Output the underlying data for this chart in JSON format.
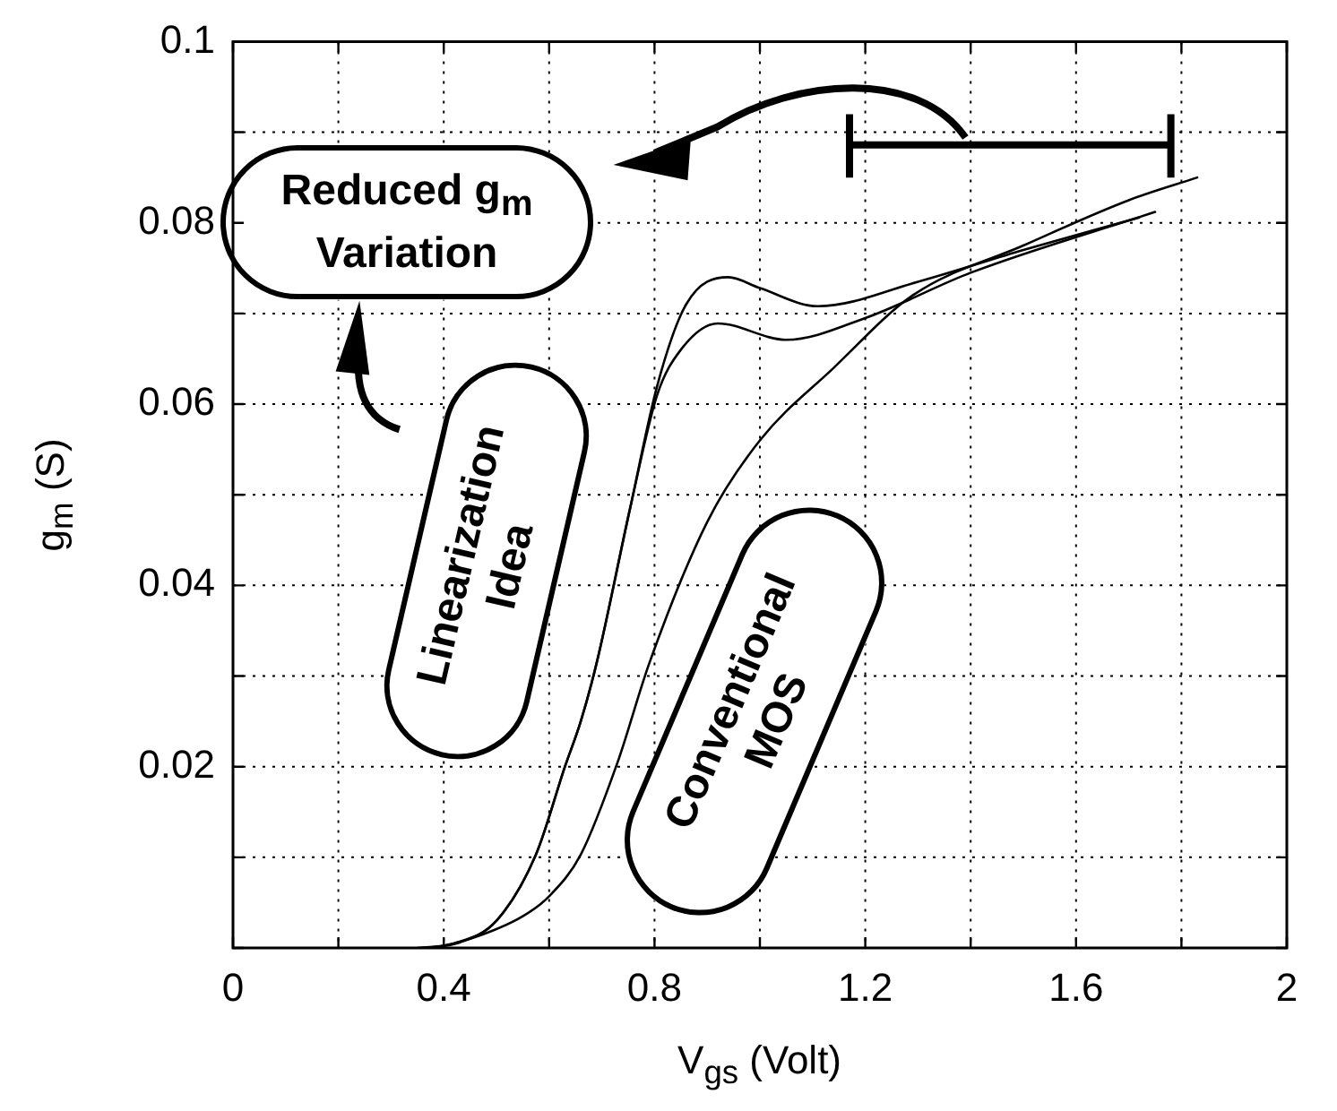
{
  "chart_data": {
    "type": "line",
    "xlabel": "V$_{gs}$ (Volt)",
    "ylabel": "g$_{m}$ (S)",
    "xlim": [
      0,
      2
    ],
    "ylim": [
      0,
      0.1
    ],
    "xticks": [
      0,
      {
        "value": 0.2,
        "label": null
      },
      0.4,
      {
        "value": 0.6,
        "label": null
      },
      0.8,
      {
        "value": 1.0,
        "label": null
      },
      1.2,
      {
        "value": 1.4,
        "label": null
      },
      1.6,
      {
        "value": 1.8,
        "label": null
      },
      2
    ],
    "yticks": [
      {
        "value": 0,
        "label": null
      },
      {
        "value": 0.01,
        "label": null
      },
      0.02,
      {
        "value": 0.03,
        "label": null
      },
      0.04,
      {
        "value": 0.05,
        "label": null
      },
      0.06,
      {
        "value": 0.07,
        "label": null
      },
      0.08,
      {
        "value": 0.09,
        "label": null
      },
      0.1
    ],
    "grid": true,
    "legend": false,
    "marker": "none",
    "line_style": "solid",
    "series": [
      {
        "color": "#000000",
        "x": [
          0.35,
          0.42,
          0.5,
          0.575,
          0.63,
          0.66,
          0.69,
          0.754,
          0.805,
          0.86,
          0.94,
          1.0,
          1.11,
          1.3,
          1.5,
          1.72
        ],
        "values": [
          0,
          0.0005,
          0.003,
          0.0103,
          0.02,
          0.025,
          0.0314,
          0.0486,
          0.062,
          0.071,
          0.074,
          0.0728,
          0.0708,
          0.0735,
          0.077,
          0.0806
        ]
      },
      {
        "color": "#000000",
        "x": [
          0.37,
          0.43,
          0.5,
          0.575,
          0.63,
          0.66,
          0.69,
          0.754,
          0.805,
          0.85,
          0.92,
          1.05,
          1.2,
          1.4,
          1.75
        ],
        "values": [
          0,
          0.0006,
          0.003,
          0.0103,
          0.02,
          0.025,
          0.0314,
          0.0486,
          0.061,
          0.066,
          0.0689,
          0.0671,
          0.0695,
          0.0745,
          0.0812
        ]
      },
      {
        "color": "#000000",
        "x": [
          0.38,
          0.45,
          0.55,
          0.6,
          0.66,
          0.73,
          0.79,
          0.9,
          1.0,
          1.14,
          1.29,
          1.5,
          1.7,
          1.83
        ],
        "values": [
          0,
          0.001,
          0.0035,
          0.0057,
          0.0103,
          0.0205,
          0.0314,
          0.047,
          0.056,
          0.064,
          0.072,
          0.0775,
          0.0825,
          0.085
        ]
      }
    ],
    "annotations": [
      "Reduced g$_{m}$ Variation",
      "Linearization Idea",
      "Conventional MOS"
    ]
  }
}
